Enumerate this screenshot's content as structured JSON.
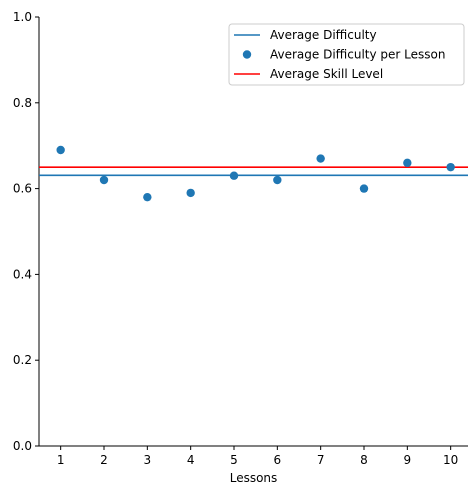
{
  "chart_data": {
    "type": "scatter",
    "title": "",
    "xlabel": "Lessons",
    "ylabel": "",
    "x": [
      1,
      2,
      3,
      4,
      5,
      6,
      7,
      8,
      9,
      10
    ],
    "xlim": [
      0.5,
      10.4
    ],
    "ylim": [
      0,
      1
    ],
    "x_ticks": [
      "1",
      "2",
      "3",
      "4",
      "5",
      "6",
      "7",
      "8",
      "9",
      "10"
    ],
    "y_ticks": [
      "0.0",
      "0.2",
      "0.4",
      "0.6",
      "0.8",
      "1.0"
    ],
    "series": [
      {
        "name": "Average Difficulty per Lesson",
        "kind": "scatter",
        "color": "#1f77b4",
        "values": [
          0.69,
          0.62,
          0.58,
          0.59,
          0.63,
          0.62,
          0.67,
          0.6,
          0.66,
          0.65
        ]
      },
      {
        "name": "Average Difficulty",
        "kind": "hline",
        "color": "#1f77b4",
        "value": 0.631
      },
      {
        "name": "Average Skill Level",
        "kind": "hline",
        "color": "#ff0000",
        "value": 0.65
      }
    ],
    "legend": {
      "position": "top-right",
      "order": [
        "Average Difficulty",
        "Average Difficulty per Lesson",
        "Average Skill Level"
      ]
    },
    "grid": false
  }
}
